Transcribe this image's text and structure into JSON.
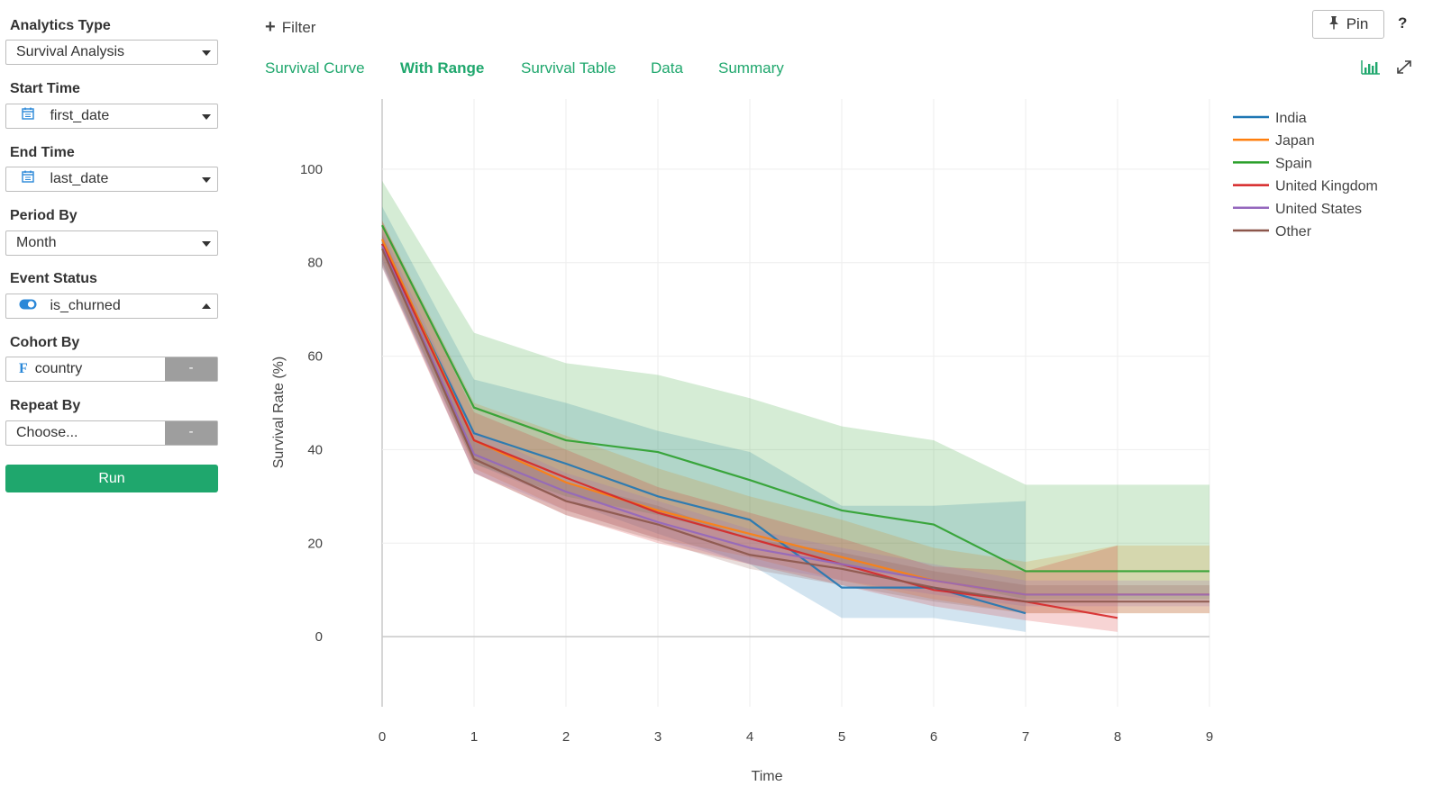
{
  "sidebar": {
    "analytics_type": {
      "label": "Analytics Type",
      "value": "Survival Analysis"
    },
    "start_time": {
      "label": "Start Time",
      "value": "first_date",
      "icon": "calendar-icon"
    },
    "end_time": {
      "label": "End Time",
      "value": "last_date",
      "icon": "calendar-icon"
    },
    "period_by": {
      "label": "Period By",
      "value": "Month"
    },
    "event_status": {
      "label": "Event Status",
      "value": "is_churned",
      "icon": "toggle-icon"
    },
    "cohort_by": {
      "label": "Cohort By",
      "value": "country",
      "icon": "factor-icon",
      "side_button": "-"
    },
    "repeat_by": {
      "label": "Repeat By",
      "placeholder": "Choose...",
      "side_button": "-"
    },
    "run_label": "Run",
    "colors": {
      "run": "#1fa76d",
      "side_button": "#9e9e9e"
    }
  },
  "toolbar": {
    "filter_label": "Filter",
    "pin_label": "Pin",
    "help_label": "?",
    "tabs": [
      {
        "label": "Survival Curve",
        "active": false
      },
      {
        "label": "With Range",
        "active": true
      },
      {
        "label": "Survival Table",
        "active": false
      },
      {
        "label": "Data",
        "active": false
      },
      {
        "label": "Summary",
        "active": false
      }
    ],
    "accent": "#1fa76d"
  },
  "chart_data": {
    "type": "line",
    "title": "",
    "xlabel": "Time",
    "ylabel": "Survival Rate (%)",
    "xlim": [
      0,
      9
    ],
    "ylim": [
      -15,
      115
    ],
    "xticks": [
      0,
      1,
      2,
      3,
      4,
      5,
      6,
      7,
      8,
      9
    ],
    "yticks": [
      0,
      20,
      40,
      60,
      80,
      100
    ],
    "grid": true,
    "legend_position": "top-right",
    "series": [
      {
        "name": "India",
        "color": "#1f77b4",
        "x": [
          0,
          1,
          2,
          3,
          4,
          5,
          6,
          7
        ],
        "values": [
          84,
          43.5,
          37,
          30,
          25,
          10.5,
          10.5,
          5
        ],
        "upper": [
          92,
          55,
          50,
          44,
          39.5,
          28,
          28,
          29
        ],
        "lower": [
          79,
          37,
          29,
          22,
          15.5,
          4,
          4,
          1
        ]
      },
      {
        "name": "Japan",
        "color": "#ff7f0e",
        "x": [
          0,
          1,
          2,
          3,
          4,
          5,
          6,
          7,
          8,
          9
        ],
        "values": [
          85,
          42,
          33,
          27,
          22,
          17,
          12,
          9,
          9,
          9
        ],
        "upper": [
          89,
          50,
          43,
          36,
          30,
          25,
          19,
          16,
          19.5,
          19.5
        ],
        "lower": [
          81,
          36,
          27,
          21,
          17,
          12,
          8,
          5,
          5,
          5
        ]
      },
      {
        "name": "Spain",
        "color": "#2ca02c",
        "x": [
          0,
          1,
          2,
          3,
          4,
          5,
          6,
          7,
          8,
          9
        ],
        "values": [
          88,
          49,
          42,
          39.5,
          33.5,
          27,
          24,
          14,
          14,
          14
        ],
        "upper": [
          97.5,
          65,
          58.5,
          56,
          51,
          45,
          42,
          32.5,
          32.5,
          32.5
        ],
        "lower": [
          80,
          37,
          30,
          26,
          21,
          15,
          12,
          8,
          8,
          8
        ]
      },
      {
        "name": "United Kingdom",
        "color": "#d62728",
        "x": [
          0,
          1,
          2,
          3,
          4,
          5,
          6,
          7,
          8
        ],
        "values": [
          84,
          42,
          34,
          26.5,
          21,
          15.5,
          10,
          7.5,
          4
        ],
        "upper": [
          89,
          48,
          40,
          32,
          26.5,
          21,
          15,
          14,
          19.5
        ],
        "lower": [
          79,
          35,
          26,
          20,
          15.5,
          11,
          6.5,
          3.5,
          1
        ]
      },
      {
        "name": "United States",
        "color": "#9467bd",
        "x": [
          0,
          1,
          2,
          3,
          4,
          5,
          6,
          7,
          8,
          9
        ],
        "values": [
          83.5,
          39,
          31,
          24.5,
          19,
          15.5,
          12,
          9,
          9,
          9
        ],
        "upper": [
          87,
          44,
          35,
          29,
          23,
          19,
          15.5,
          12,
          12,
          12
        ],
        "lower": [
          80,
          35,
          27,
          21,
          15.5,
          12,
          9,
          6.5,
          6.5,
          6.5
        ]
      },
      {
        "name": "Other",
        "color": "#8c564b",
        "x": [
          0,
          1,
          2,
          3,
          4,
          5,
          6,
          7,
          8,
          9
        ],
        "values": [
          83,
          38,
          29,
          24,
          17.5,
          14.5,
          10.5,
          7.5,
          7.5,
          7.5
        ],
        "upper": [
          86,
          42,
          33,
          28,
          21,
          18,
          14,
          11,
          11,
          11
        ],
        "lower": [
          79.5,
          35,
          26,
          20.5,
          14.5,
          11,
          7.5,
          5,
          5,
          5
        ]
      }
    ]
  }
}
